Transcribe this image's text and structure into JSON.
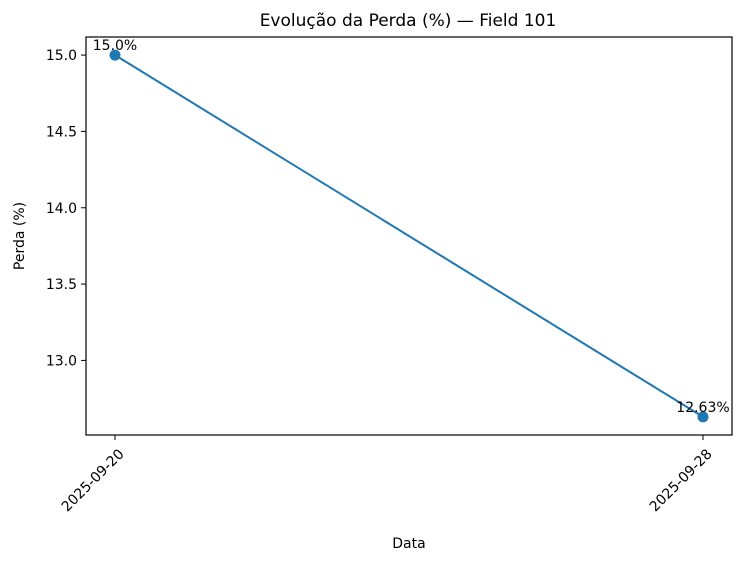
{
  "chart_data": {
    "type": "line",
    "title": "Evolução da Perda (%) — Field 101",
    "xlabel": "Data",
    "ylabel": "Perda (%)",
    "x": [
      "2025-09-20",
      "2025-09-28"
    ],
    "series": [
      {
        "values": [
          15.0,
          12.63
        ],
        "labels": [
          "15.0%",
          "12.63%"
        ],
        "color": "#1f77b4"
      }
    ],
    "x_ticks": [
      "2025-09-20",
      "2025-09-28"
    ],
    "y_ticks": [
      {
        "value": 13.0,
        "label": "13.0"
      },
      {
        "value": 13.5,
        "label": "13.5"
      },
      {
        "value": 14.0,
        "label": "14.0"
      },
      {
        "value": 14.5,
        "label": "14.5"
      },
      {
        "value": 15.0,
        "label": "15.0"
      }
    ],
    "ylim": [
      12.5115,
      15.1185
    ],
    "grid": false,
    "legend": "none"
  }
}
